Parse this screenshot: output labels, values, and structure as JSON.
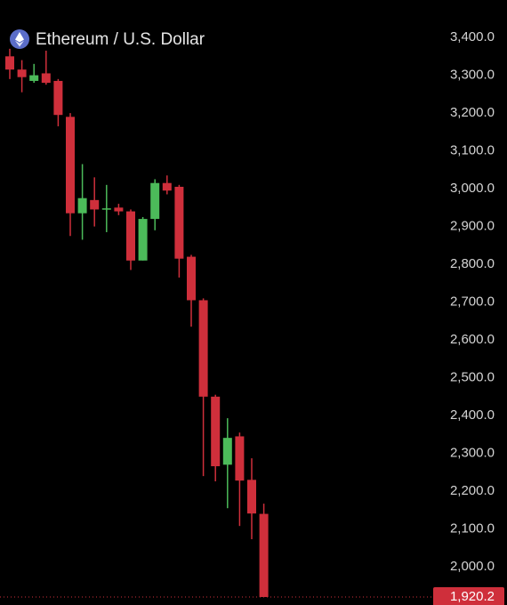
{
  "chart_data": {
    "type": "candlestick",
    "title": "Ethereum / U.S. Dollar",
    "up_color": "#4cbb5a",
    "down_color": "#cf2f3b",
    "open": [
      3350,
      3315,
      3285,
      3305,
      3285,
      3190,
      2935,
      2970,
      2945,
      2950,
      2940,
      2810,
      2920,
      3015,
      3005,
      2820,
      2705,
      2450,
      2270,
      2345,
      2230,
      2140
    ],
    "high": [
      3370,
      3340,
      3330,
      3365,
      3290,
      3200,
      3065,
      3030,
      3010,
      2960,
      2945,
      2925,
      3025,
      3035,
      3010,
      2825,
      2710,
      2455,
      2393,
      2355,
      2287,
      2167
    ],
    "low": [
      3290,
      3255,
      3280,
      3275,
      3165,
      2875,
      2865,
      2900,
      2885,
      2930,
      2785,
      2810,
      2890,
      2985,
      2765,
      2635,
      2240,
      2226,
      2155,
      2108,
      2073,
      1920.2
    ],
    "close": [
      3315,
      3295,
      3300,
      3280,
      3195,
      2935,
      2975,
      2945,
      2948,
      2940,
      2810,
      2920,
      3015,
      2995,
      2815,
      2705,
      2450,
      2266,
      2341,
      2228,
      2141,
      1920.2
    ],
    "ylim": [
      1899,
      3499
    ],
    "yticks": [
      {
        "value": 3400,
        "label": "3,400.0"
      },
      {
        "value": 3300,
        "label": "3,300.0"
      },
      {
        "value": 3200,
        "label": "3,200.0"
      },
      {
        "value": 3100,
        "label": "3,100.0"
      },
      {
        "value": 3000,
        "label": "3,000.0"
      },
      {
        "value": 2900,
        "label": "2,900.0"
      },
      {
        "value": 2800,
        "label": "2,800.0"
      },
      {
        "value": 2700,
        "label": "2,700.0"
      },
      {
        "value": 2600,
        "label": "2,600.0"
      },
      {
        "value": 2500,
        "label": "2,500.0"
      },
      {
        "value": 2400,
        "label": "2,400.0"
      },
      {
        "value": 2300,
        "label": "2,300.0"
      },
      {
        "value": 2200,
        "label": "2,200.0"
      },
      {
        "value": 2100,
        "label": "2,100.0"
      },
      {
        "value": 2000,
        "label": "2,000.0"
      }
    ],
    "last_price": {
      "value": 1920.2,
      "label": "1,920.2"
    }
  }
}
